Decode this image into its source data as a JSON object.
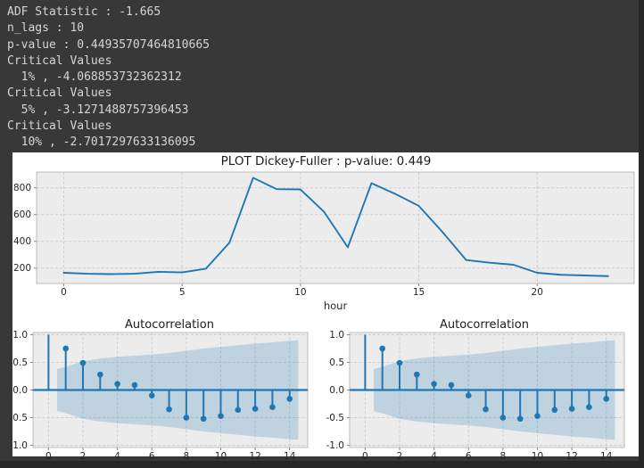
{
  "terminal": {
    "lines": [
      "ADF Statistic : -1.665",
      "n_lags : 10",
      "p-value : 0.44935707464810665",
      "Critical Values",
      "  1% , -4.068853732362312",
      "Critical Values",
      "  5% , -3.1271488757396453",
      "Critical Values",
      "  10% , -2.7017297633136095"
    ],
    "text_color": "#d6d6d6",
    "background": "#383838"
  },
  "figure": {
    "background": "#ffffff",
    "axes_background": "#ececec",
    "axes_border": "#bdbdbd",
    "grid_color": "#cdcdcd",
    "tick_color": "#8a8a8a",
    "label_color": "#262626",
    "accent": "#1f77b4",
    "band": "rgba(31,119,180,0.22)"
  },
  "chart_data": [
    {
      "type": "line",
      "title": "PLOT Dickey-Fuller : p-value: 0.449",
      "xlabel": "hour",
      "x": [
        0,
        1,
        2,
        3,
        4,
        5,
        6,
        7,
        8,
        9,
        10,
        11,
        12,
        13,
        14,
        15,
        16,
        17,
        18,
        19,
        20,
        21,
        22,
        23
      ],
      "values": [
        165,
        158,
        155,
        158,
        172,
        168,
        195,
        390,
        875,
        790,
        788,
        620,
        355,
        835,
        755,
        665,
        470,
        260,
        240,
        225,
        165,
        150,
        145,
        140
      ],
      "xticks": [
        0,
        5,
        10,
        15,
        20
      ],
      "xtick_labels": [
        "0",
        "5",
        "10",
        "15",
        "20"
      ],
      "yticks": [
        200,
        400,
        600,
        800
      ],
      "ytick_labels": [
        "200",
        "400",
        "600",
        "800"
      ],
      "xlim": [
        -1.15,
        24.1
      ],
      "ylim": [
        85,
        918
      ],
      "grid": "dashed"
    },
    {
      "type": "stem",
      "title": "Autocorrelation",
      "lags": [
        0,
        1,
        2,
        3,
        4,
        5,
        6,
        7,
        8,
        9,
        10,
        11,
        12,
        13,
        14
      ],
      "values": [
        1.0,
        0.75,
        0.49,
        0.28,
        0.11,
        0.09,
        -0.1,
        -0.35,
        -0.5,
        -0.52,
        -0.47,
        -0.36,
        -0.34,
        -0.31,
        -0.16
      ],
      "conf_lags": [
        0.5,
        1,
        2,
        3,
        4,
        5,
        6,
        7,
        8,
        9,
        10,
        11,
        12,
        13,
        14,
        14.5
      ],
      "conf_halfwidth": [
        0.38,
        0.42,
        0.52,
        0.57,
        0.6,
        0.62,
        0.64,
        0.67,
        0.71,
        0.75,
        0.78,
        0.81,
        0.84,
        0.86,
        0.89,
        0.9
      ],
      "xticks": [
        0,
        2,
        4,
        6,
        8,
        10,
        12,
        14
      ],
      "xtick_labels": [
        "0",
        "2",
        "4",
        "6",
        "8",
        "10",
        "12",
        "14"
      ],
      "yticks": [
        -1.0,
        -0.5,
        0.0,
        0.5,
        1.0
      ],
      "ytick_labels": [
        "-1.0",
        "-0.5",
        "0.0",
        "0.5",
        "1.0"
      ],
      "xlim": [
        -0.9,
        15.05
      ],
      "ylim": [
        -1.04,
        1.04
      ],
      "grid": "dashed"
    },
    {
      "type": "stem",
      "title": "Autocorrelation",
      "lags": [
        0,
        1,
        2,
        3,
        4,
        5,
        6,
        7,
        8,
        9,
        10,
        11,
        12,
        13,
        14
      ],
      "values": [
        1.0,
        0.75,
        0.49,
        0.28,
        0.11,
        0.09,
        -0.1,
        -0.35,
        -0.5,
        -0.52,
        -0.47,
        -0.36,
        -0.34,
        -0.31,
        -0.16
      ],
      "conf_lags": [
        0.5,
        1,
        2,
        3,
        4,
        5,
        6,
        7,
        8,
        9,
        10,
        11,
        12,
        13,
        14,
        14.5
      ],
      "conf_halfwidth": [
        0.38,
        0.42,
        0.52,
        0.57,
        0.6,
        0.62,
        0.64,
        0.67,
        0.71,
        0.75,
        0.78,
        0.81,
        0.84,
        0.86,
        0.89,
        0.9
      ],
      "xticks": [
        0,
        2,
        4,
        6,
        8,
        10,
        12,
        14
      ],
      "xtick_labels": [
        "0",
        "2",
        "4",
        "6",
        "8",
        "10",
        "12",
        "14"
      ],
      "yticks": [
        -1.0,
        -0.5,
        0.0,
        0.5,
        1.0
      ],
      "ytick_labels": [
        "-1.0",
        "-0.5",
        "0.0",
        "0.5",
        "1.0"
      ],
      "xlim": [
        -0.9,
        15.05
      ],
      "ylim": [
        -1.04,
        1.04
      ],
      "grid": "dashed"
    }
  ]
}
